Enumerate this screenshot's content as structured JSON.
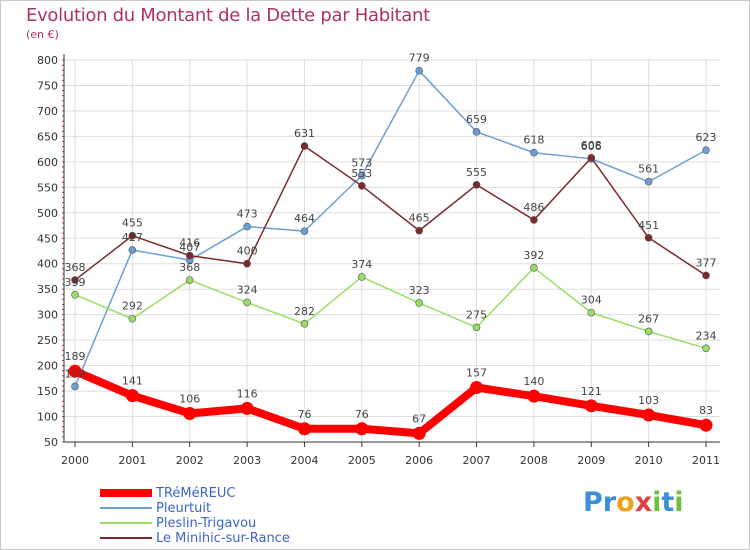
{
  "chart_data": {
    "type": "line",
    "title": "Evolution du Montant de la Dette par Habitant",
    "subtitle": "(en €)",
    "categories": [
      "2000",
      "2001",
      "2002",
      "2003",
      "2004",
      "2005",
      "2006",
      "2007",
      "2008",
      "2009",
      "2010",
      "2011"
    ],
    "ylim": [
      50,
      800
    ],
    "yticks": [
      50,
      100,
      150,
      200,
      250,
      300,
      350,
      400,
      450,
      500,
      550,
      600,
      650,
      700,
      750,
      800
    ],
    "grid": true,
    "legend_position": "bottom-left",
    "series": [
      {
        "name": "TRéMéREUC",
        "color": "#ff0000",
        "values": [
          189,
          141,
          106,
          116,
          76,
          76,
          67,
          157,
          140,
          121,
          103,
          83
        ]
      },
      {
        "name": "Pleurtuit",
        "color": "#6a9fd4",
        "values": [
          159,
          427,
          407,
          473,
          464,
          573,
          779,
          659,
          618,
          606,
          561,
          623
        ]
      },
      {
        "name": "Pleslin-Trigavou",
        "color": "#99dd66",
        "values": [
          339,
          292,
          368,
          324,
          282,
          374,
          323,
          275,
          392,
          304,
          267,
          234
        ]
      },
      {
        "name": "Le Minihic-sur-Rance",
        "color": "#7a2a2a",
        "values": [
          368,
          455,
          416,
          400,
          631,
          553,
          465,
          555,
          486,
          608,
          451,
          377
        ]
      }
    ]
  },
  "brand": {
    "letters": [
      "P",
      "r",
      "o",
      "x",
      "i",
      "t",
      "i"
    ],
    "colors": [
      "#3a8fd6",
      "#3a8fd6",
      "#f0a020",
      "#e04040",
      "#70c040",
      "#3a8fd6",
      "#70c040"
    ]
  }
}
